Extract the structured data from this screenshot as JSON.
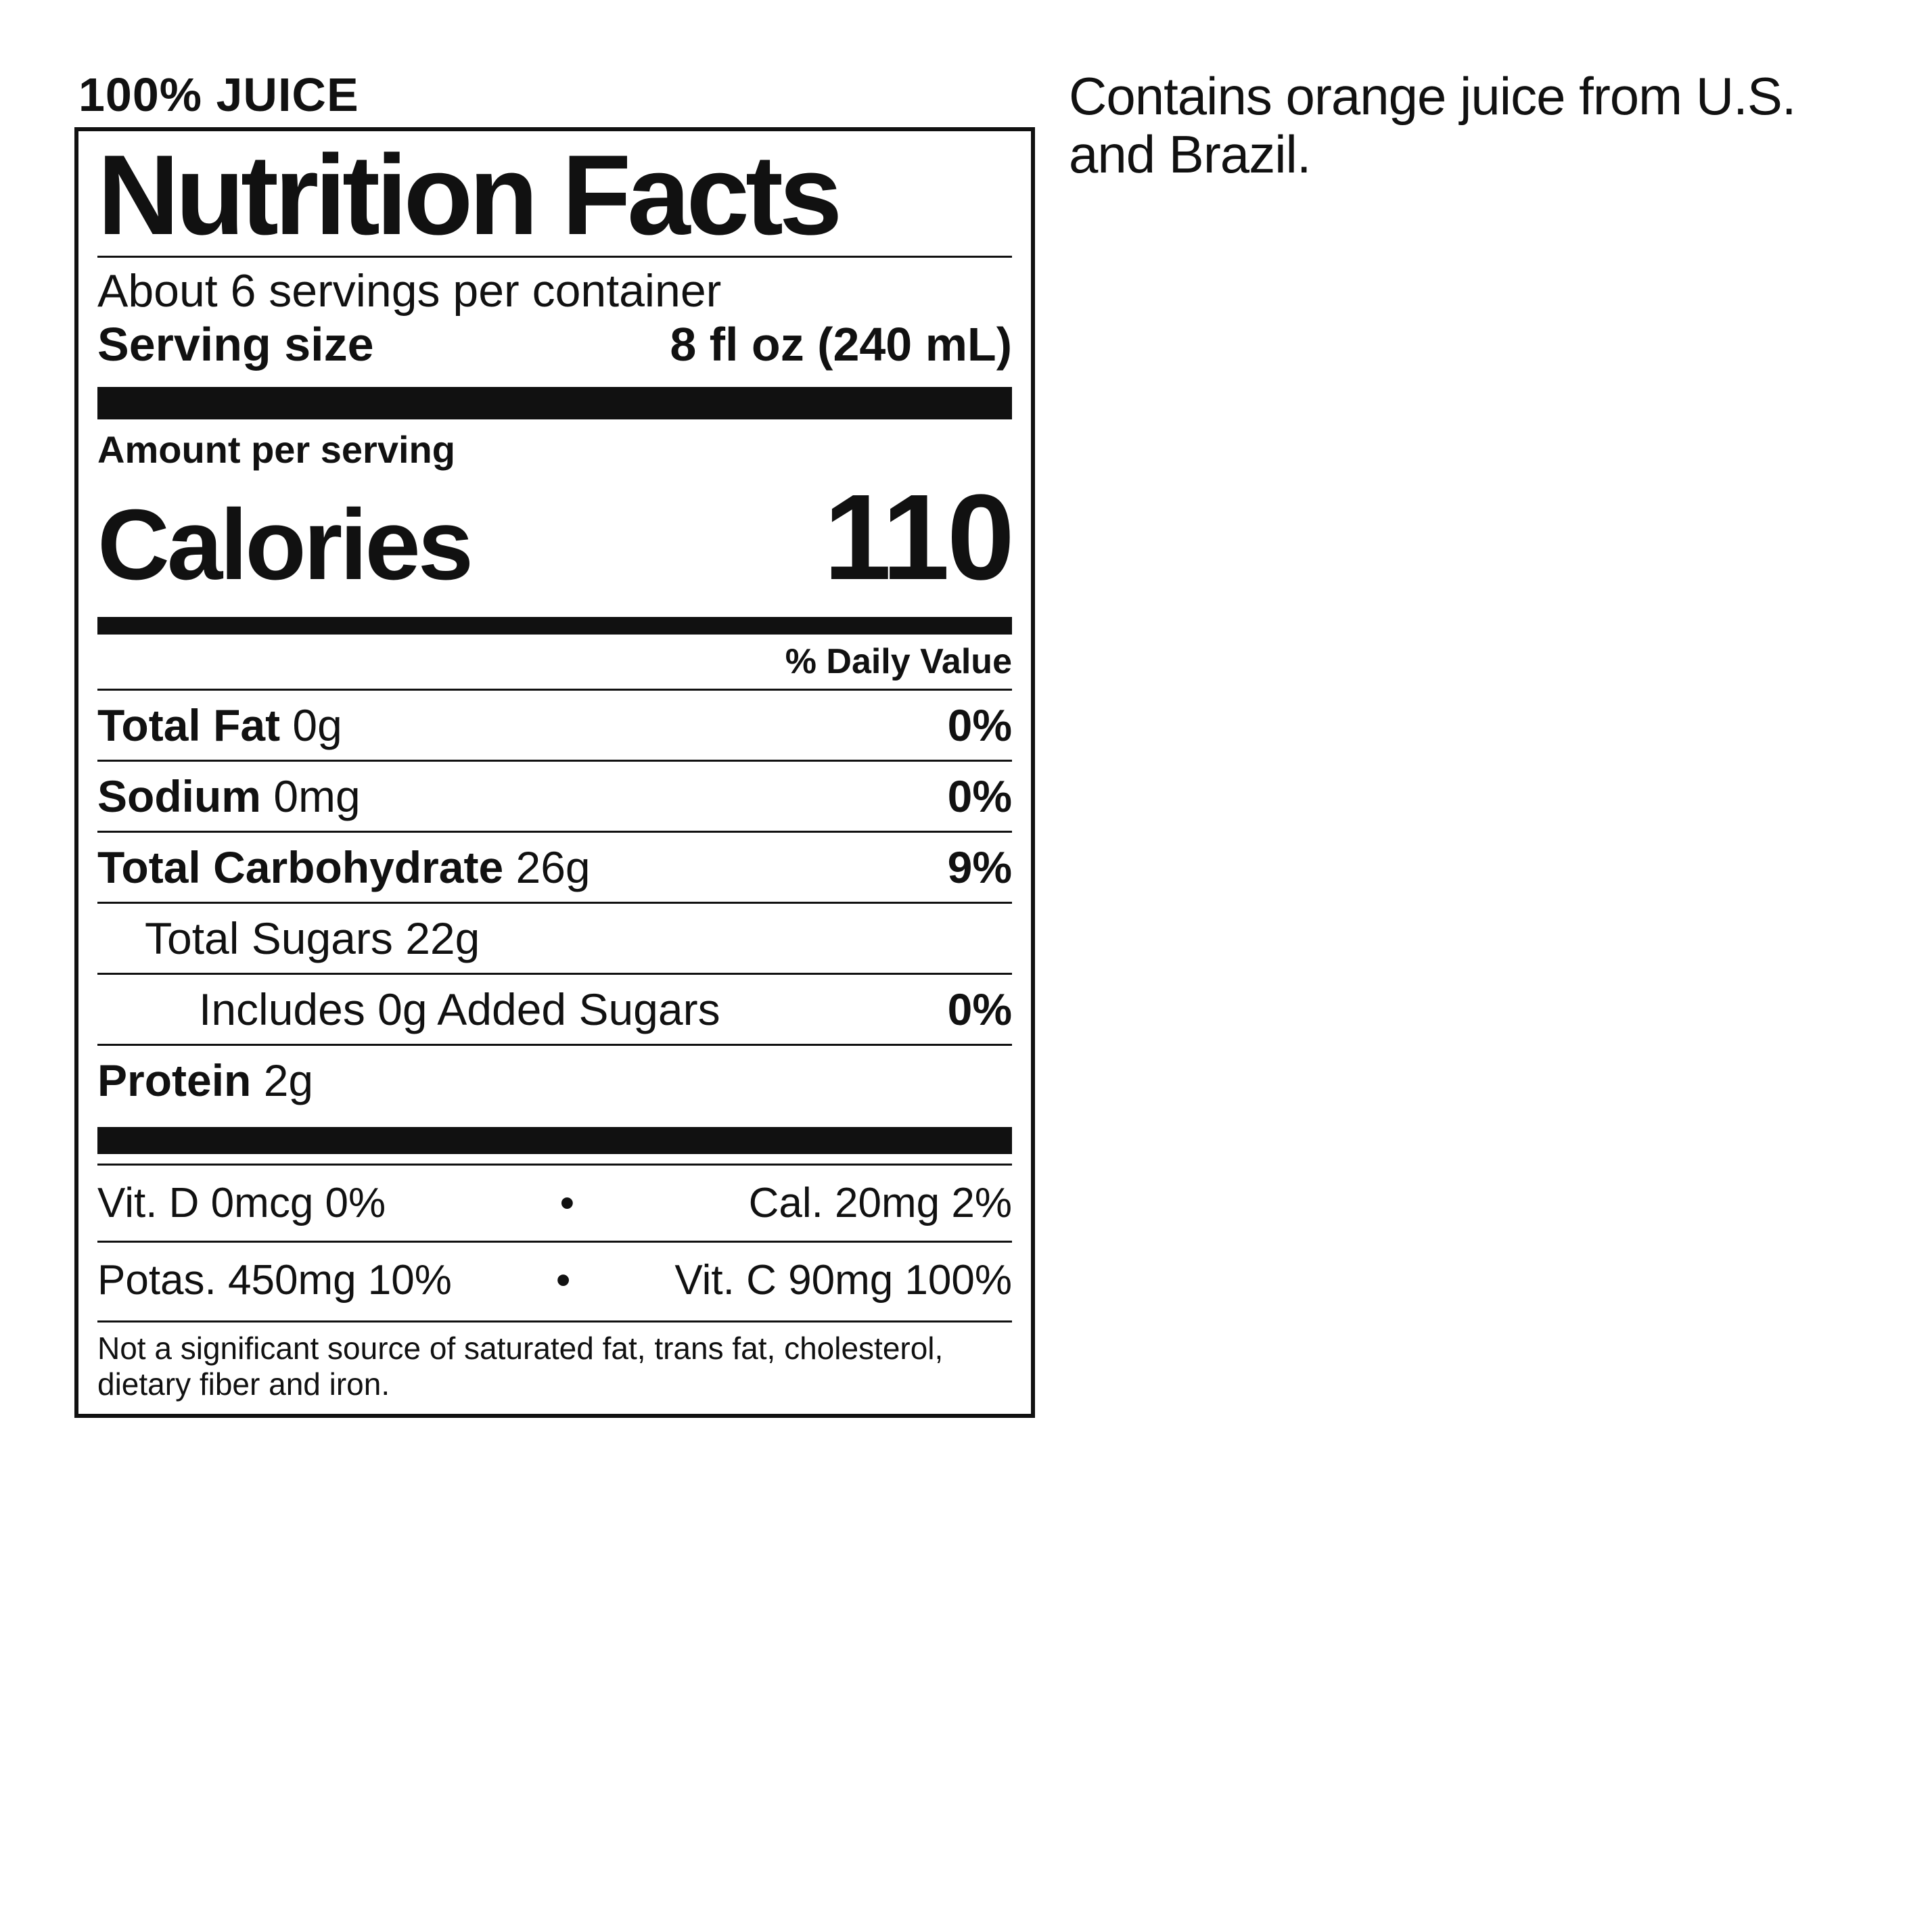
{
  "header": {
    "juice": "100% JUICE"
  },
  "panel": {
    "title": "Nutrition Facts",
    "servings_per_container": "About 6 servings per container",
    "serving_size_label": "Serving size",
    "serving_size_value": "8 fl oz (240 mL)",
    "amount_per_serving": "Amount per serving",
    "calories_label": "Calories",
    "calories_value": "110",
    "dv_header": "% Daily Value",
    "rows": [
      {
        "label_bold": "Total Fat",
        "label_rest": " 0g",
        "pct": "0%",
        "indent": 0
      },
      {
        "label_bold": "Sodium",
        "label_rest": " 0mg",
        "pct": "0%",
        "indent": 0
      },
      {
        "label_bold": "Total Carbohydrate",
        "label_rest": " 26g",
        "pct": "9%",
        "indent": 0
      },
      {
        "label_bold": "",
        "label_rest": "Total Sugars 22g",
        "pct": "",
        "indent": 1
      },
      {
        "label_bold": "",
        "label_rest": "Includes 0g Added Sugars",
        "pct": "0%",
        "indent": 2
      },
      {
        "label_bold": "Protein",
        "label_rest": " 2g",
        "pct": "",
        "indent": 0
      }
    ],
    "micro_row1_left": "Vit. D 0mcg 0%",
    "micro_row1_right": "Cal. 20mg 2%",
    "micro_row2_left": "Potas. 450mg 10%",
    "micro_row2_right": "Vit. C 90mg 100%",
    "dot": "•",
    "footnote": "Not a significant source of saturated fat, trans fat, cholesterol, dietary fiber and iron."
  },
  "side_note": "Contains orange juice from U.S. and Brazil."
}
